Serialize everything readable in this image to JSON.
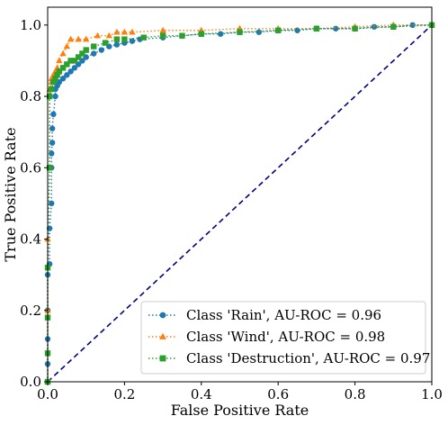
{
  "chart_data": {
    "type": "line",
    "xlabel": "False Positive Rate",
    "ylabel": "True Positive Rate",
    "xlim": [
      0.0,
      1.0
    ],
    "ylim": [
      0.0,
      1.05
    ],
    "x_ticks": [
      "0.0",
      "0.2",
      "0.4",
      "0.6",
      "0.8",
      "1.0"
    ],
    "y_ticks": [
      "0.0",
      "0.2",
      "0.4",
      "0.6",
      "0.8",
      "1.0"
    ],
    "grid": false,
    "legend_position": "lower-right",
    "diagonal": {
      "x": [
        0,
        1
      ],
      "y": [
        0,
        1
      ],
      "color": "#000080",
      "style": "dashed"
    },
    "series": [
      {
        "name": "Class 'Rain', AU-ROC = 0.96",
        "color": "#1f77b4",
        "marker": "circle",
        "x": [
          0,
          0,
          0,
          0,
          0,
          0.005,
          0.005,
          0.01,
          0.01,
          0.01,
          0.012,
          0.012,
          0.015,
          0.02,
          0.02,
          0.025,
          0.03,
          0.04,
          0.05,
          0.06,
          0.07,
          0.08,
          0.09,
          0.1,
          0.12,
          0.14,
          0.16,
          0.18,
          0.2,
          0.22,
          0.24,
          0.3,
          0.35,
          0.4,
          0.45,
          0.5,
          0.55,
          0.6,
          0.65,
          0.7,
          0.75,
          0.8,
          0.85,
          0.9,
          0.95,
          1.0
        ],
        "y": [
          0,
          0.05,
          0.12,
          0.2,
          0.3,
          0.33,
          0.43,
          0.5,
          0.6,
          0.64,
          0.67,
          0.71,
          0.75,
          0.8,
          0.82,
          0.83,
          0.84,
          0.85,
          0.86,
          0.87,
          0.88,
          0.89,
          0.9,
          0.91,
          0.92,
          0.93,
          0.94,
          0.945,
          0.95,
          0.955,
          0.96,
          0.965,
          0.97,
          0.975,
          0.975,
          0.98,
          0.98,
          0.985,
          0.985,
          0.99,
          0.99,
          0.99,
          0.995,
          0.995,
          1.0,
          1.0
        ]
      },
      {
        "name": "Class 'Wind', AU-ROC = 0.98",
        "color": "#ff7f0e",
        "marker": "triangle",
        "x": [
          0,
          0,
          0,
          0.005,
          0.005,
          0.01,
          0.01,
          0.015,
          0.02,
          0.025,
          0.03,
          0.04,
          0.05,
          0.06,
          0.08,
          0.1,
          0.13,
          0.16,
          0.18,
          0.2,
          0.22,
          0.3,
          0.4,
          0.5,
          0.6,
          0.7,
          0.8,
          0.9,
          1.0
        ],
        "y": [
          0,
          0.2,
          0.4,
          0.6,
          0.82,
          0.84,
          0.85,
          0.86,
          0.87,
          0.88,
          0.9,
          0.92,
          0.94,
          0.96,
          0.96,
          0.96,
          0.97,
          0.97,
          0.98,
          0.98,
          0.98,
          0.985,
          0.985,
          0.99,
          0.99,
          0.99,
          0.995,
          1.0,
          1.0
        ]
      },
      {
        "name": "Class 'Destruction', AU-ROC = 0.97",
        "color": "#2ca02c",
        "marker": "square",
        "x": [
          0,
          0,
          0,
          0,
          0.005,
          0.005,
          0.01,
          0.015,
          0.02,
          0.025,
          0.03,
          0.04,
          0.05,
          0.06,
          0.07,
          0.08,
          0.09,
          0.1,
          0.12,
          0.15,
          0.18,
          0.2,
          0.25,
          0.3,
          0.35,
          0.4,
          0.5,
          0.6,
          0.7,
          0.8,
          0.9,
          1.0
        ],
        "y": [
          0,
          0.08,
          0.18,
          0.32,
          0.6,
          0.8,
          0.82,
          0.84,
          0.85,
          0.86,
          0.87,
          0.88,
          0.89,
          0.9,
          0.9,
          0.91,
          0.92,
          0.93,
          0.94,
          0.95,
          0.96,
          0.96,
          0.965,
          0.97,
          0.97,
          0.975,
          0.98,
          0.985,
          0.99,
          0.99,
          0.995,
          1.0
        ]
      }
    ]
  }
}
